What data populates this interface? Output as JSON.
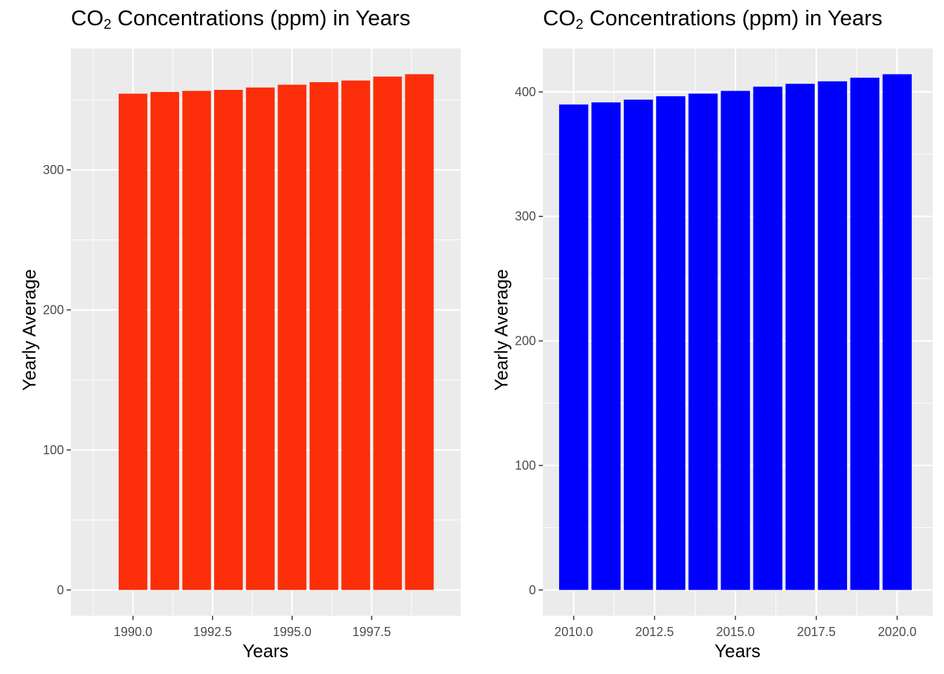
{
  "chart_data": [
    {
      "type": "bar",
      "title": {
        "main": "CO",
        "sub": "2",
        "rest": " Concentrations (ppm) in Years"
      },
      "xlabel": "Years",
      "ylabel": "Yearly Average",
      "x": [
        1990,
        1991,
        1992,
        1993,
        1994,
        1995,
        1996,
        1997,
        1998,
        1999
      ],
      "values": [
        354.4,
        355.6,
        356.4,
        357.1,
        358.8,
        360.8,
        362.6,
        363.8,
        366.6,
        368.3
      ],
      "xlim": [
        1988.05,
        2000.3
      ],
      "ylim": [
        -18.4,
        386.7
      ],
      "xticks": [
        1990.0,
        1992.5,
        1995.0,
        1997.5
      ],
      "xtick_labels": [
        "1990.0",
        "1992.5",
        "1995.0",
        "1997.5"
      ],
      "yticks": [
        0,
        100,
        200,
        300
      ],
      "ytick_labels": [
        "0",
        "100",
        "200",
        "300"
      ],
      "bar_color": "#FC2E0A",
      "grid": true
    },
    {
      "type": "bar",
      "title": {
        "main": "CO",
        "sub": "2",
        "rest": " Concentrations (ppm) in Years"
      },
      "xlabel": "Years",
      "ylabel": "Yearly Average",
      "x": [
        2010,
        2011,
        2012,
        2013,
        2014,
        2015,
        2016,
        2017,
        2018,
        2019,
        2020
      ],
      "values": [
        389.9,
        391.6,
        393.8,
        396.5,
        398.6,
        400.8,
        404.2,
        406.5,
        408.5,
        411.4,
        414.2
      ],
      "xlim": [
        2009.05,
        2021.1
      ],
      "ylim": [
        -20.7,
        434.9
      ],
      "xticks": [
        2010.0,
        2012.5,
        2015.0,
        2017.5,
        2020.0
      ],
      "xtick_labels": [
        "2010.0",
        "2012.5",
        "2015.0",
        "2017.5",
        "2020.0"
      ],
      "yticks": [
        0,
        100,
        200,
        300,
        400
      ],
      "ytick_labels": [
        "0",
        "100",
        "200",
        "300",
        "400"
      ],
      "bar_color": "#0000FF",
      "grid": true
    }
  ]
}
